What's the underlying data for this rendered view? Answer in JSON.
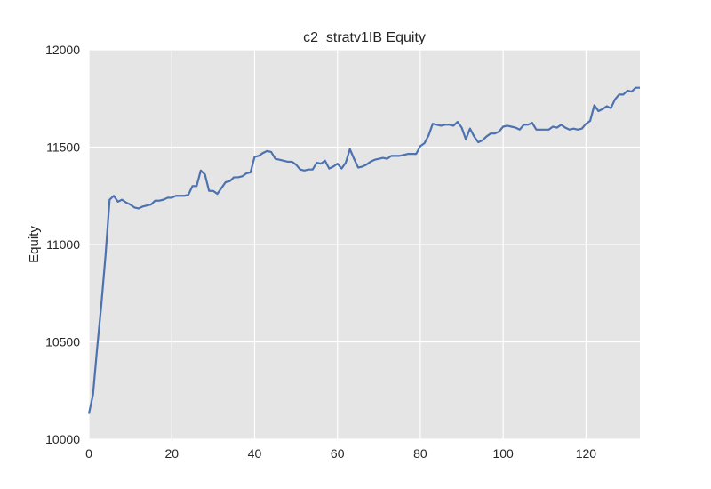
{
  "chart_data": {
    "type": "line",
    "title": "c2_stratv1IB Equity",
    "xlabel": "",
    "ylabel": "Equity",
    "xlim": [
      0,
      133
    ],
    "ylim": [
      10000,
      12000
    ],
    "xticks": [
      0,
      20,
      40,
      60,
      80,
      100,
      120
    ],
    "yticks": [
      10000,
      10500,
      11000,
      11500,
      12000
    ],
    "grid": true,
    "colors": {
      "background": "#e5e5e5",
      "grid": "#ffffff",
      "line": "#4c72b0"
    },
    "series": [
      {
        "name": "",
        "x": [
          0,
          1,
          2,
          3,
          4,
          5,
          6,
          7,
          8,
          9,
          10,
          11,
          12,
          13,
          14,
          15,
          16,
          17,
          18,
          19,
          20,
          21,
          22,
          23,
          24,
          25,
          26,
          27,
          28,
          29,
          30,
          31,
          32,
          33,
          34,
          35,
          36,
          37,
          38,
          39,
          40,
          41,
          42,
          43,
          44,
          45,
          46,
          47,
          48,
          49,
          50,
          51,
          52,
          53,
          54,
          55,
          56,
          57,
          58,
          59,
          60,
          61,
          62,
          63,
          64,
          65,
          66,
          67,
          68,
          69,
          70,
          71,
          72,
          73,
          74,
          75,
          76,
          77,
          78,
          79,
          80,
          81,
          82,
          83,
          84,
          85,
          86,
          87,
          88,
          89,
          90,
          91,
          92,
          93,
          94,
          95,
          96,
          97,
          98,
          99,
          100,
          101,
          102,
          103,
          104,
          105,
          106,
          107,
          108,
          109,
          110,
          111,
          112,
          113,
          114,
          115,
          116,
          117,
          118,
          119,
          120,
          121,
          122,
          123,
          124,
          125,
          126,
          127,
          128,
          129,
          130,
          131,
          132,
          133
        ],
        "values": [
          10130,
          10230,
          10470,
          10690,
          10940,
          11230,
          11250,
          11220,
          11230,
          11215,
          11205,
          11190,
          11185,
          11195,
          11200,
          11205,
          11225,
          11225,
          11230,
          11240,
          11240,
          11250,
          11250,
          11250,
          11255,
          11300,
          11300,
          11380,
          11360,
          11275,
          11275,
          11260,
          11290,
          11320,
          11325,
          11345,
          11345,
          11350,
          11365,
          11370,
          11450,
          11455,
          11470,
          11480,
          11475,
          11440,
          11435,
          11430,
          11425,
          11425,
          11410,
          11385,
          11380,
          11385,
          11385,
          11420,
          11415,
          11430,
          11390,
          11400,
          11415,
          11390,
          11420,
          11490,
          11440,
          11395,
          11400,
          11410,
          11425,
          11435,
          11440,
          11445,
          11440,
          11455,
          11455,
          11455,
          11460,
          11465,
          11465,
          11465,
          11505,
          11520,
          11560,
          11620,
          11615,
          11610,
          11615,
          11615,
          11610,
          11630,
          11600,
          11540,
          11595,
          11555,
          11525,
          11535,
          11555,
          11570,
          11570,
          11580,
          11605,
          11610,
          11605,
          11600,
          11590,
          11615,
          11615,
          11625,
          11590,
          11590,
          11590,
          11590,
          11605,
          11600,
          11615,
          11600,
          11590,
          11595,
          11590,
          11595,
          11620,
          11635,
          11715,
          11685,
          11695,
          11710,
          11700,
          11745,
          11770,
          11770,
          11790,
          11785,
          11805,
          11805
        ]
      }
    ]
  }
}
